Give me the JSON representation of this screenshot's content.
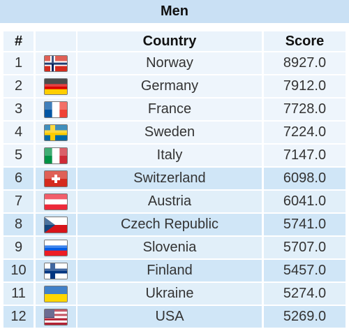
{
  "title": "Men",
  "table": {
    "header": [
      "#",
      "Country",
      "Score"
    ],
    "rows": [
      [
        "1",
        "Norway",
        "8927.0"
      ],
      [
        "2",
        "Germany",
        "7912.0"
      ],
      [
        "3",
        "France",
        "7728.0"
      ],
      [
        "4",
        "Sweden",
        "7224.0"
      ],
      [
        "5",
        "Italy",
        "7147.0"
      ],
      [
        "6",
        "Switzerland",
        "6098.0"
      ],
      [
        "7",
        "Austria",
        "6041.0"
      ],
      [
        "8",
        "Czech Republic",
        "5741.0"
      ],
      [
        "9",
        "Slovenia",
        "5707.0"
      ],
      [
        "10",
        "Finland",
        "5457.0"
      ],
      [
        "11",
        "Ukraine",
        "5274.0"
      ],
      [
        "12",
        "USA",
        "5269.0"
      ]
    ]
  }
}
